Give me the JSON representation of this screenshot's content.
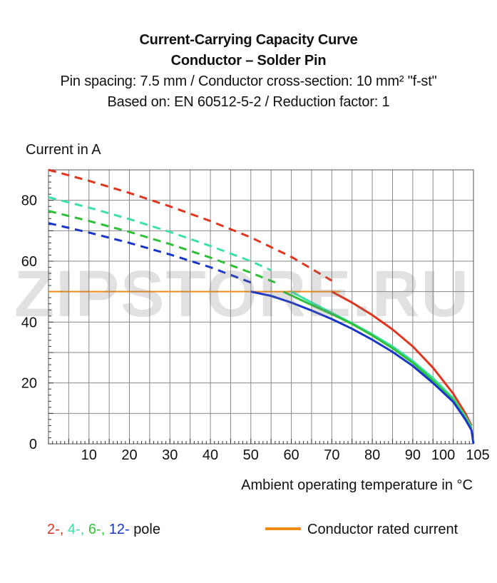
{
  "chart_data": {
    "type": "line",
    "title": "Current-Carrying Capacity Curve",
    "title2": "Conductor – Solder Pin",
    "subtitle1": "Pin spacing: 7.5 mm / Conductor cross-section: 10 mm² \"f-st\"",
    "subtitle2": "Based on: EN 60512-5-2 / Reduction factor: 1",
    "ylabel": "Current in A",
    "xlabel": "Ambient operating temperature in °C",
    "xlim": [
      0,
      105
    ],
    "ylim": [
      0,
      90
    ],
    "xticks": [
      10,
      20,
      30,
      40,
      50,
      60,
      70,
      80,
      90,
      100,
      105
    ],
    "yticks": [
      0,
      20,
      40,
      60,
      80
    ],
    "grid": true,
    "series": [
      {
        "name": "2-",
        "color": "#e0351f",
        "dashed": [
          [
            0,
            90
          ],
          [
            10,
            86.4
          ],
          [
            20,
            82.4
          ],
          [
            30,
            78
          ],
          [
            40,
            73.2
          ],
          [
            50,
            67.8
          ],
          [
            60,
            61.4
          ],
          [
            70,
            53.6
          ]
        ],
        "solid": [
          [
            70,
            50
          ],
          [
            75,
            46.4
          ],
          [
            80,
            42.3
          ],
          [
            85,
            37.6
          ],
          [
            90,
            32
          ],
          [
            95,
            25
          ],
          [
            100,
            16.5
          ],
          [
            103,
            10
          ],
          [
            104.5,
            6
          ]
        ]
      },
      {
        "name": "4-",
        "color": "#3de0a8",
        "dashed": [
          [
            0,
            81
          ],
          [
            10,
            77.6
          ],
          [
            20,
            73.8
          ],
          [
            30,
            69.6
          ],
          [
            40,
            65
          ],
          [
            50,
            60
          ],
          [
            55,
            57
          ]
        ],
        "solid": [
          [
            60,
            50
          ],
          [
            65,
            46.4
          ],
          [
            70,
            43
          ],
          [
            75,
            39.6
          ],
          [
            80,
            36
          ],
          [
            85,
            32
          ],
          [
            90,
            27.2
          ],
          [
            95,
            21.6
          ],
          [
            100,
            15
          ],
          [
            103,
            9
          ],
          [
            104.5,
            5.5
          ]
        ]
      },
      {
        "name": "6-",
        "color": "#2fc03a",
        "dashed": [
          [
            0,
            76.5
          ],
          [
            10,
            73.2
          ],
          [
            20,
            69.6
          ],
          [
            30,
            65.6
          ],
          [
            40,
            61.2
          ],
          [
            50,
            56.2
          ],
          [
            56,
            53
          ]
        ],
        "solid": [
          [
            58,
            50
          ],
          [
            65,
            45.6
          ],
          [
            70,
            42.6
          ],
          [
            75,
            39.4
          ],
          [
            80,
            35.6
          ],
          [
            85,
            31.4
          ],
          [
            90,
            26.6
          ],
          [
            95,
            20.8
          ],
          [
            100,
            14.4
          ],
          [
            103,
            8.4
          ],
          [
            104.5,
            5
          ]
        ]
      },
      {
        "name": "12-",
        "color": "#1a36c8",
        "dashed": [
          [
            0,
            72.5
          ],
          [
            10,
            69.4
          ],
          [
            20,
            66
          ],
          [
            30,
            62.2
          ],
          [
            40,
            58
          ],
          [
            50,
            53
          ]
        ],
        "solid": [
          [
            50,
            50
          ],
          [
            55,
            48.6
          ],
          [
            60,
            46.4
          ],
          [
            65,
            43.8
          ],
          [
            70,
            41
          ],
          [
            75,
            37.8
          ],
          [
            80,
            34.2
          ],
          [
            85,
            30.2
          ],
          [
            90,
            25.6
          ],
          [
            95,
            20
          ],
          [
            100,
            13.8
          ],
          [
            103,
            8
          ],
          [
            104.5,
            4.5
          ],
          [
            105,
            0
          ]
        ]
      }
    ],
    "rated_current": {
      "name": "Conductor rated current",
      "value": 50,
      "color": "#f28a17"
    },
    "legend": {
      "pole_labels": [
        "2-,",
        "4-,",
        "6-,",
        "12-"
      ],
      "pole_suffix": "pole",
      "rated_label": "Conductor rated current"
    }
  },
  "watermark": "ZIPSTORE.RU"
}
